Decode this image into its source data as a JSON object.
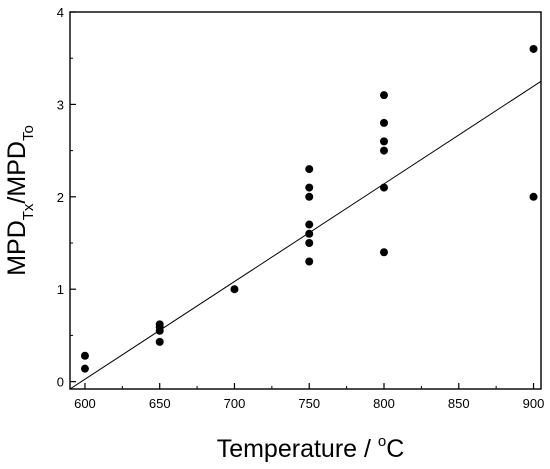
{
  "chart_data": {
    "type": "scatter",
    "title": "",
    "xlabel": "Temperature / °C",
    "ylabel": "MPD_Tx/MPD_To",
    "ylabel_parts": {
      "main": "MPD",
      "sub1": "Tx",
      "slash": "/",
      "main2": "MPD",
      "sub2": "To"
    },
    "xlabel_parts": {
      "text": "Temperature / ",
      "sup": "o",
      "unit": "C"
    },
    "xlim": [
      590,
      905
    ],
    "ylim": [
      -0.08,
      4
    ],
    "x_ticks": [
      600,
      650,
      700,
      750,
      800,
      850,
      900
    ],
    "y_ticks": [
      0,
      1,
      2,
      3,
      4
    ],
    "grid": false,
    "legend": "none",
    "points": [
      {
        "x": 600,
        "y": 0.28
      },
      {
        "x": 600,
        "y": 0.14
      },
      {
        "x": 650,
        "y": 0.62
      },
      {
        "x": 650,
        "y": 0.59
      },
      {
        "x": 650,
        "y": 0.55
      },
      {
        "x": 650,
        "y": 0.43
      },
      {
        "x": 700,
        "y": 1.0
      },
      {
        "x": 750,
        "y": 2.3
      },
      {
        "x": 750,
        "y": 2.1
      },
      {
        "x": 750,
        "y": 2.0
      },
      {
        "x": 750,
        "y": 1.7
      },
      {
        "x": 750,
        "y": 1.6
      },
      {
        "x": 750,
        "y": 1.5
      },
      {
        "x": 750,
        "y": 1.3
      },
      {
        "x": 800,
        "y": 3.1
      },
      {
        "x": 800,
        "y": 2.8
      },
      {
        "x": 800,
        "y": 2.6
      },
      {
        "x": 800,
        "y": 2.5
      },
      {
        "x": 800,
        "y": 2.1
      },
      {
        "x": 800,
        "y": 1.4
      },
      {
        "x": 900,
        "y": 3.6
      },
      {
        "x": 900,
        "y": 2.0
      }
    ],
    "fit_line": {
      "x": [
        590,
        905
      ],
      "y": [
        -0.08,
        3.25
      ]
    },
    "colors": {
      "points": "#000000",
      "line": "#000000",
      "axes": "#000000",
      "background": "#ffffff"
    }
  }
}
